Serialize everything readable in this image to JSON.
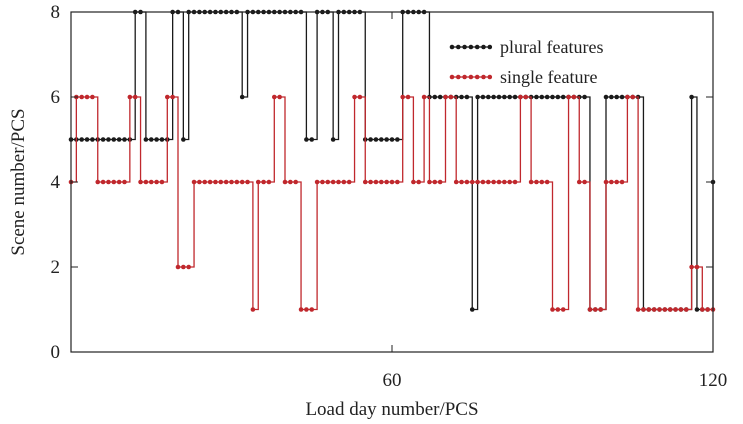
{
  "chart_data": {
    "type": "line",
    "step": "post",
    "xlabel": "Load day number/PCS",
    "ylabel": "Scene number/PCS",
    "xlim": [
      0,
      120
    ],
    "ylim": [
      0,
      8
    ],
    "xticks": [
      60,
      120
    ],
    "yticks": [
      0,
      2,
      4,
      6,
      8
    ],
    "x_tick_labels": [
      "60",
      "120"
    ],
    "y_tick_labels": [
      "0",
      "2",
      "4",
      "6",
      "8"
    ],
    "legend_position": "top-right",
    "grid": false,
    "colors": {
      "plural": "#1a1a1a",
      "single": "#c0282d"
    },
    "series": [
      {
        "name": "plural features",
        "x": [
          0,
          1,
          2,
          3,
          4,
          5,
          6,
          7,
          8,
          9,
          10,
          11,
          12,
          13,
          14,
          15,
          16,
          17,
          18,
          19,
          20,
          21,
          22,
          23,
          24,
          25,
          26,
          27,
          28,
          29,
          30,
          31,
          32,
          33,
          34,
          35,
          36,
          37,
          38,
          39,
          40,
          41,
          42,
          43,
          44,
          45,
          46,
          47,
          48,
          49,
          50,
          51,
          52,
          53,
          54,
          55,
          56,
          57,
          58,
          59,
          60,
          61,
          62,
          63,
          64,
          65,
          66,
          67,
          68,
          69,
          70,
          71,
          72,
          73,
          74,
          75,
          76,
          77,
          78,
          79,
          80,
          81,
          82,
          83,
          84,
          85,
          86,
          87,
          88,
          89,
          90,
          91,
          92,
          93,
          94,
          95,
          96,
          97,
          98,
          99,
          100,
          101,
          102,
          103,
          104,
          105,
          106,
          107,
          108,
          109,
          110,
          111,
          112,
          113,
          114,
          115,
          116,
          117,
          118,
          119,
          120
        ],
        "y": [
          5,
          5,
          5,
          5,
          5,
          5,
          5,
          5,
          5,
          5,
          5,
          5,
          8,
          8,
          5,
          5,
          5,
          5,
          5,
          8,
          8,
          5,
          8,
          8,
          8,
          8,
          8,
          8,
          8,
          8,
          8,
          8,
          6,
          8,
          8,
          8,
          8,
          8,
          8,
          8,
          8,
          8,
          8,
          8,
          5,
          5,
          8,
          8,
          8,
          5,
          8,
          8,
          8,
          8,
          8,
          5,
          5,
          5,
          5,
          5,
          5,
          5,
          8,
          8,
          8,
          8,
          8,
          6,
          6,
          6,
          6,
          6,
          6,
          6,
          6,
          1,
          6,
          6,
          6,
          6,
          6,
          6,
          6,
          6,
          6,
          6,
          6,
          6,
          6,
          6,
          6,
          6,
          6,
          6,
          6,
          6,
          6,
          1,
          1,
          1,
          6,
          6,
          6,
          6,
          6,
          6,
          6,
          1,
          1,
          1,
          1,
          1,
          1,
          1,
          1,
          1,
          6,
          1,
          1,
          1,
          4
        ]
      },
      {
        "name": "single feature",
        "x": [
          0,
          1,
          2,
          3,
          4,
          5,
          6,
          7,
          8,
          9,
          10,
          11,
          12,
          13,
          14,
          15,
          16,
          17,
          18,
          19,
          20,
          21,
          22,
          23,
          24,
          25,
          26,
          27,
          28,
          29,
          30,
          31,
          32,
          33,
          34,
          35,
          36,
          37,
          38,
          39,
          40,
          41,
          42,
          43,
          44,
          45,
          46,
          47,
          48,
          49,
          50,
          51,
          52,
          53,
          54,
          55,
          56,
          57,
          58,
          59,
          60,
          61,
          62,
          63,
          64,
          65,
          66,
          67,
          68,
          69,
          70,
          71,
          72,
          73,
          74,
          75,
          76,
          77,
          78,
          79,
          80,
          81,
          82,
          83,
          84,
          85,
          86,
          87,
          88,
          89,
          90,
          91,
          92,
          93,
          94,
          95,
          96,
          97,
          98,
          99,
          100,
          101,
          102,
          103,
          104,
          105,
          106,
          107,
          108,
          109,
          110,
          111,
          112,
          113,
          114,
          115,
          116,
          117,
          118,
          119,
          120
        ],
        "y": [
          4,
          6,
          6,
          6,
          6,
          4,
          4,
          4,
          4,
          4,
          4,
          6,
          6,
          4,
          4,
          4,
          4,
          4,
          6,
          6,
          2,
          2,
          2,
          4,
          4,
          4,
          4,
          4,
          4,
          4,
          4,
          4,
          4,
          4,
          1,
          4,
          4,
          4,
          6,
          6,
          4,
          4,
          4,
          1,
          1,
          1,
          4,
          4,
          4,
          4,
          4,
          4,
          4,
          6,
          6,
          4,
          4,
          4,
          4,
          4,
          4,
          4,
          6,
          6,
          4,
          4,
          6,
          4,
          4,
          4,
          6,
          6,
          4,
          4,
          4,
          4,
          4,
          4,
          4,
          4,
          4,
          4,
          4,
          4,
          6,
          6,
          4,
          4,
          4,
          4,
          1,
          1,
          1,
          6,
          6,
          4,
          4,
          1,
          1,
          1,
          4,
          4,
          4,
          4,
          6,
          6,
          1,
          1,
          1,
          1,
          1,
          1,
          1,
          1,
          1,
          1,
          2,
          2,
          1,
          1,
          1
        ]
      }
    ]
  }
}
